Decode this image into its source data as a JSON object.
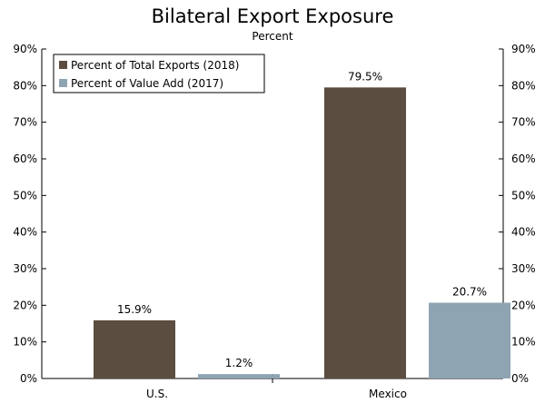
{
  "chart_data": {
    "type": "bar",
    "title": "Bilateral Export Exposure",
    "subtitle": "Percent",
    "categories": [
      "U.S.",
      "Mexico"
    ],
    "series": [
      {
        "name": "Percent of Total Exports (2018)",
        "color": "#5b4d3f",
        "values": [
          15.9,
          79.5
        ],
        "labels": [
          "15.9%",
          "79.5%"
        ]
      },
      {
        "name": "Percent of Value Add (2017)",
        "color": "#8fa4b3",
        "values": [
          1.2,
          20.7
        ],
        "labels": [
          "1.2%",
          "20.7%"
        ]
      }
    ],
    "ylim": [
      0,
      90
    ],
    "yticks": [
      0,
      10,
      20,
      30,
      40,
      50,
      60,
      70,
      80,
      90
    ],
    "ytick_labels": [
      "0%",
      "10%",
      "20%",
      "30%",
      "40%",
      "50%",
      "60%",
      "70%",
      "80%",
      "90%"
    ],
    "legend_position": "top-left",
    "grid": false,
    "xlabel": "",
    "ylabel": ""
  }
}
